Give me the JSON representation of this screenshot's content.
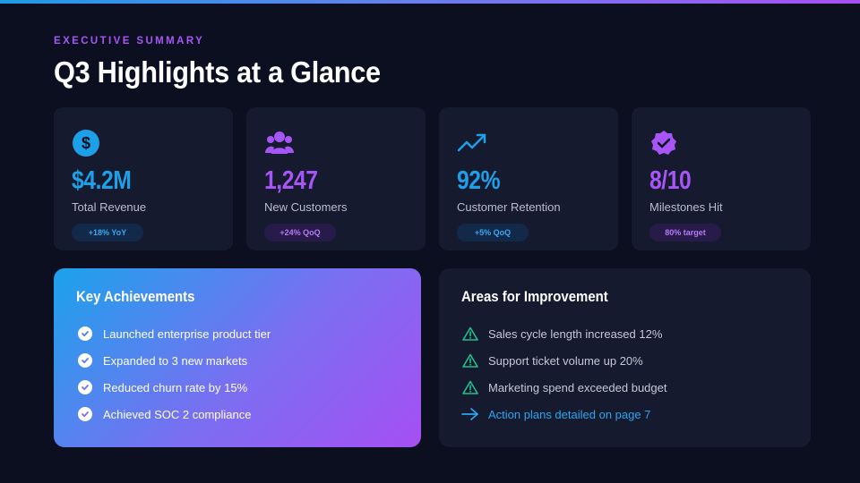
{
  "header": {
    "eyebrow": "EXECUTIVE SUMMARY",
    "title": "Q3 Highlights at a Glance"
  },
  "stats": [
    {
      "icon": "dollar-icon",
      "value": "$4.2M",
      "label": "Total Revenue",
      "badge": "+18% YoY",
      "color": "#1ea0e8"
    },
    {
      "icon": "users-icon",
      "value": "1,247",
      "label": "New Customers",
      "badge": "+24% QoQ",
      "color": "#a855f7"
    },
    {
      "icon": "trending-up-icon",
      "value": "92%",
      "label": "Customer Retention",
      "badge": "+5% QoQ",
      "color": "#1ea0e8"
    },
    {
      "icon": "verified-badge-icon",
      "value": "8/10",
      "label": "Milestones Hit",
      "badge": "80% target",
      "color": "#a855f7"
    }
  ],
  "achievements": {
    "title": "Key Achievements",
    "icon": "check-circle-icon",
    "items": [
      "Launched enterprise product tier",
      "Expanded to 3 new markets",
      "Reduced churn rate by 15%",
      "Achieved SOC 2 compliance"
    ]
  },
  "improvement": {
    "title": "Areas for Improvement",
    "icon": "warning-icon",
    "items": [
      "Sales cycle length increased 12%",
      "Support ticket volume up 20%",
      "Marketing spend exceeded budget"
    ],
    "link": {
      "icon": "arrow-right-icon",
      "label": "Action plans detailed on page 7"
    }
  },
  "colors": {
    "background": "#0c0f1f",
    "card": "#151a2e",
    "blue": "#1ea0e8",
    "purple": "#a855f7",
    "warning": "#22c08a"
  }
}
